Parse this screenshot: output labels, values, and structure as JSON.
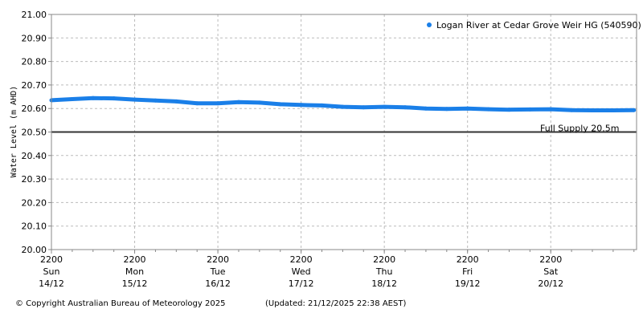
{
  "chart_data": {
    "type": "line",
    "title": "",
    "ylabel": "Water Level (m AHD)",
    "xlabel": "",
    "ylim": [
      20.0,
      21.0
    ],
    "yticks": [
      "20.00",
      "20.10",
      "20.20",
      "20.30",
      "20.40",
      "20.50",
      "20.60",
      "20.70",
      "20.80",
      "20.90",
      "21.00"
    ],
    "xlim": [
      "2025-12-14T22:00",
      "2025-12-21T22:45"
    ],
    "xticks": [
      {
        "time": "2200",
        "day": "Sun",
        "date": "14/12",
        "at": "2025-12-14T22:00"
      },
      {
        "time": "2200",
        "day": "Mon",
        "date": "15/12",
        "at": "2025-12-15T22:00"
      },
      {
        "time": "2200",
        "day": "Tue",
        "date": "16/12",
        "at": "2025-12-16T22:00"
      },
      {
        "time": "2200",
        "day": "Wed",
        "date": "17/12",
        "at": "2025-12-17T22:00"
      },
      {
        "time": "2200",
        "day": "Thu",
        "date": "18/12",
        "at": "2025-12-18T22:00"
      },
      {
        "time": "2200",
        "day": "Fri",
        "date": "19/12",
        "at": "2025-12-19T22:00"
      },
      {
        "time": "2200",
        "day": "Sat",
        "date": "20/12",
        "at": "2025-12-20T22:00"
      }
    ],
    "minor_tick_hours": 6,
    "grid": true,
    "legend_position": "top-right",
    "series": [
      {
        "name": "Logan River at Cedar Grove Weir HG (540590)",
        "color": "#1a7fe8",
        "points": [
          [
            "2025-12-14T22:00",
            20.635
          ],
          [
            "2025-12-15T04:00",
            20.64
          ],
          [
            "2025-12-15T10:00",
            20.644
          ],
          [
            "2025-12-15T16:00",
            20.643
          ],
          [
            "2025-12-15T22:00",
            20.638
          ],
          [
            "2025-12-16T04:00",
            20.634
          ],
          [
            "2025-12-16T10:00",
            20.63
          ],
          [
            "2025-12-16T16:00",
            20.622
          ],
          [
            "2025-12-16T22:00",
            20.622
          ],
          [
            "2025-12-17T04:00",
            20.627
          ],
          [
            "2025-12-17T10:00",
            20.625
          ],
          [
            "2025-12-17T16:00",
            20.618
          ],
          [
            "2025-12-17T22:00",
            20.615
          ],
          [
            "2025-12-18T04:00",
            20.613
          ],
          [
            "2025-12-18T10:00",
            20.607
          ],
          [
            "2025-12-18T16:00",
            20.605
          ],
          [
            "2025-12-18T22:00",
            20.607
          ],
          [
            "2025-12-19T04:00",
            20.605
          ],
          [
            "2025-12-19T10:00",
            20.6
          ],
          [
            "2025-12-19T16:00",
            20.598
          ],
          [
            "2025-12-19T22:00",
            20.6
          ],
          [
            "2025-12-20T04:00",
            20.597
          ],
          [
            "2025-12-20T10:00",
            20.595
          ],
          [
            "2025-12-20T16:00",
            20.596
          ],
          [
            "2025-12-20T22:00",
            20.597
          ],
          [
            "2025-12-21T04:00",
            20.593
          ],
          [
            "2025-12-21T10:00",
            20.592
          ],
          [
            "2025-12-21T16:00",
            20.592
          ],
          [
            "2025-12-21T22:00",
            20.593
          ]
        ]
      }
    ],
    "reference_line": {
      "value": 20.5,
      "label": "Full Supply 20.5m",
      "color": "#333333"
    }
  },
  "footer": {
    "copyright": "© Copyright Australian Bureau of Meteorology 2025",
    "updated": "(Updated: 21/12/2025 22:38 AEST)"
  }
}
